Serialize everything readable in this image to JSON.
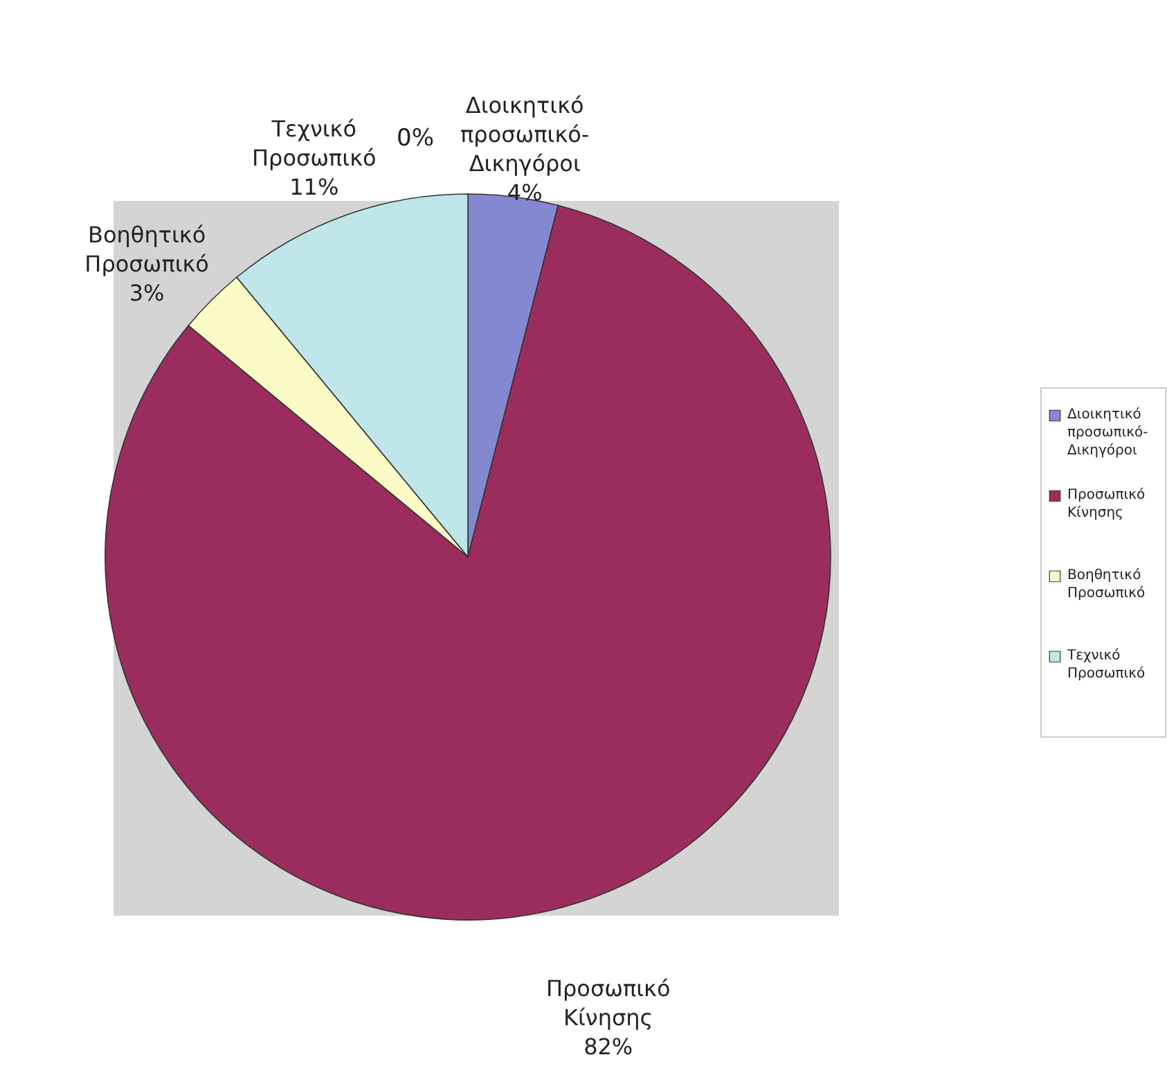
{
  "chart_data": {
    "type": "pie",
    "categories": [
      "Διοικητικό προσωπικό-Δικηγόροι",
      "Προσωπικό Κίνησης",
      "Βοηθητικό Προσωπικό",
      "Τεχνικό Προσωπικό"
    ],
    "values": [
      4,
      82,
      3,
      11
    ],
    "colors": [
      "#8488d0",
      "#9b2d5e",
      "#fbfbc8",
      "#bfe6ea"
    ],
    "value_labels": [
      "4%",
      "82%",
      "3%",
      "11%"
    ],
    "legend": "right",
    "annotations": [
      "0%"
    ]
  }
}
